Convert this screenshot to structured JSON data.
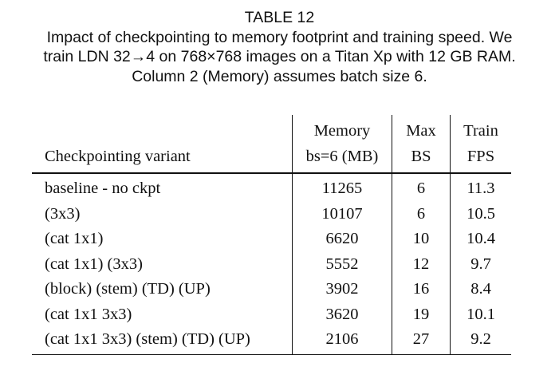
{
  "caption": {
    "table_label": "TABLE 12",
    "line1": "Impact of checkpointing to memory footprint and training speed. We",
    "line2": "train LDN 32→4 on 768×768 images on a Titan Xp with 12 GB RAM.",
    "line3": "Column 2 (Memory) assumes batch size 6."
  },
  "table": {
    "header": {
      "col0": "Checkpointing variant",
      "col1_top": "Memory",
      "col1_bottom": "bs=6 (MB)",
      "col2_top": "Max",
      "col2_bottom": "BS",
      "col3_top": "Train",
      "col3_bottom": "FPS"
    },
    "rows": [
      {
        "variant": "baseline - no ckpt",
        "memory": "11265",
        "max_bs": "6",
        "fps": "11.3"
      },
      {
        "variant": "(3x3)",
        "memory": "10107",
        "max_bs": "6",
        "fps": "10.5"
      },
      {
        "variant": "(cat 1x1)",
        "memory": "6620",
        "max_bs": "10",
        "fps": "10.4"
      },
      {
        "variant": "(cat 1x1) (3x3)",
        "memory": "5552",
        "max_bs": "12",
        "fps": "9.7"
      },
      {
        "variant": "(block) (stem) (TD) (UP)",
        "memory": "3902",
        "max_bs": "16",
        "fps": "8.4"
      },
      {
        "variant": "(cat 1x1 3x3)",
        "memory": "3620",
        "max_bs": "19",
        "fps": "10.1"
      },
      {
        "variant": "(cat 1x1 3x3) (stem) (TD) (UP)",
        "memory": "2106",
        "max_bs": "27",
        "fps": "9.2"
      }
    ]
  }
}
